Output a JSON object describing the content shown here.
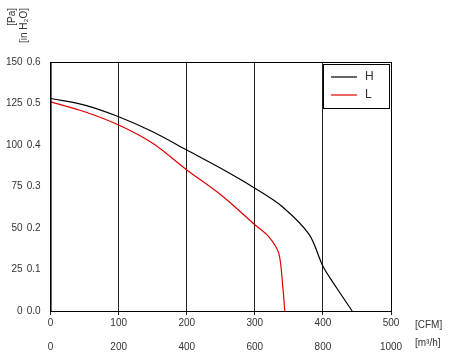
{
  "chart_data": {
    "type": "line",
    "x_label": "[CFM]",
    "x2_label": "[m³/h]",
    "y_label": "[Pa]",
    "y2_label": "[in H₂O]",
    "xlim": [
      0,
      500
    ],
    "xticks": [
      0,
      100,
      200,
      300,
      400,
      500
    ],
    "x2lim": [
      0,
      1000
    ],
    "x2ticks": [
      0,
      200,
      400,
      600,
      800,
      1000
    ],
    "ylim": [
      0,
      150
    ],
    "yticks": [
      0,
      25,
      50,
      75,
      100,
      125,
      150
    ],
    "y2lim": [
      0,
      0.6
    ],
    "y2ticks": [
      {
        "value": 0,
        "label": "0.0"
      },
      0.1,
      0.2,
      0.3,
      0.4,
      0.5,
      0.6
    ],
    "grid": "x",
    "legend": "top-right",
    "series": [
      {
        "name": "H",
        "color": "#000000",
        "marker": "none",
        "line_style": "solid",
        "x": [
          0,
          50,
          100,
          150,
          200,
          250,
          300,
          340,
          380,
          400,
          420,
          443
        ],
        "values": [
          128,
          124,
          117,
          108,
          97,
          86,
          74,
          63,
          46,
          27,
          14,
          0
        ]
      },
      {
        "name": "L",
        "color": "#e00000",
        "marker": "none",
        "line_style": "solid",
        "x": [
          0,
          50,
          100,
          150,
          200,
          250,
          300,
          320,
          335,
          341,
          344
        ],
        "values": [
          126,
          120,
          112,
          101,
          85,
          70,
          52,
          45,
          35,
          15,
          0
        ]
      }
    ]
  }
}
